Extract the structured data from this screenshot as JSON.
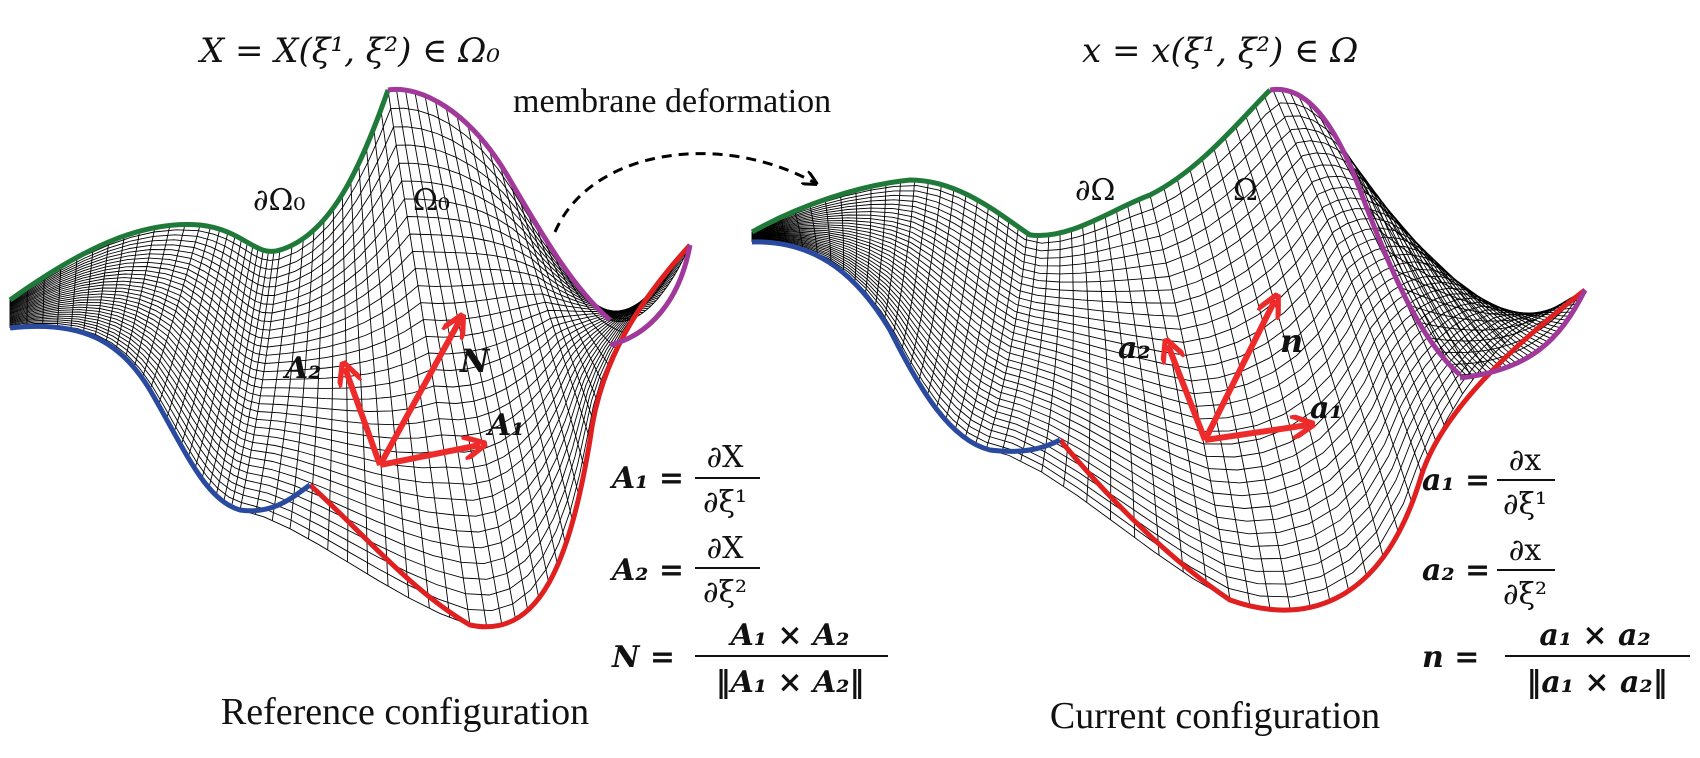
{
  "colors": {
    "mesh": "#000000",
    "edge_green": "#1f7a3a",
    "edge_magenta": "#a0399a",
    "edge_red": "#e02020",
    "edge_blue": "#2a4aa0",
    "vector_red": "#ee2b2b",
    "arrow_dashed": "#000000"
  },
  "reference": {
    "header": "X = X(ξ¹, ξ²) ∈ Ω₀",
    "boundary_label": "∂Ω₀",
    "domain_label": "Ω₀",
    "vector_labels": {
      "a1": "A₁",
      "a2": "A₂",
      "n": "N"
    },
    "eq1_lhs": "A₁ =",
    "eq1_num": "∂X",
    "eq1_den": "∂ξ¹",
    "eq2_lhs": "A₂ =",
    "eq2_num": "∂X",
    "eq2_den": "∂ξ²",
    "eq3_lhs": "N =",
    "eq3_num": "A₁ × A₂",
    "eq3_den": "‖A₁ × A₂‖",
    "caption": "Reference configuration"
  },
  "current": {
    "header": "x = x(ξ¹, ξ²) ∈ Ω",
    "boundary_label": "∂Ω",
    "domain_label": "Ω",
    "vector_labels": {
      "a1": "a₁",
      "a2": "a₂",
      "n": "n"
    },
    "eq1_lhs": "a₁ =",
    "eq1_num": "∂x",
    "eq1_den": "∂ξ¹",
    "eq2_lhs": "a₂ =",
    "eq2_num": "∂x",
    "eq2_den": "∂ξ²",
    "eq3_lhs": "n =",
    "eq3_num": "a₁ × a₂",
    "eq3_den": "‖a₁ × a₂‖",
    "caption": "Current configuration"
  },
  "transition_label": "membrane deformation"
}
